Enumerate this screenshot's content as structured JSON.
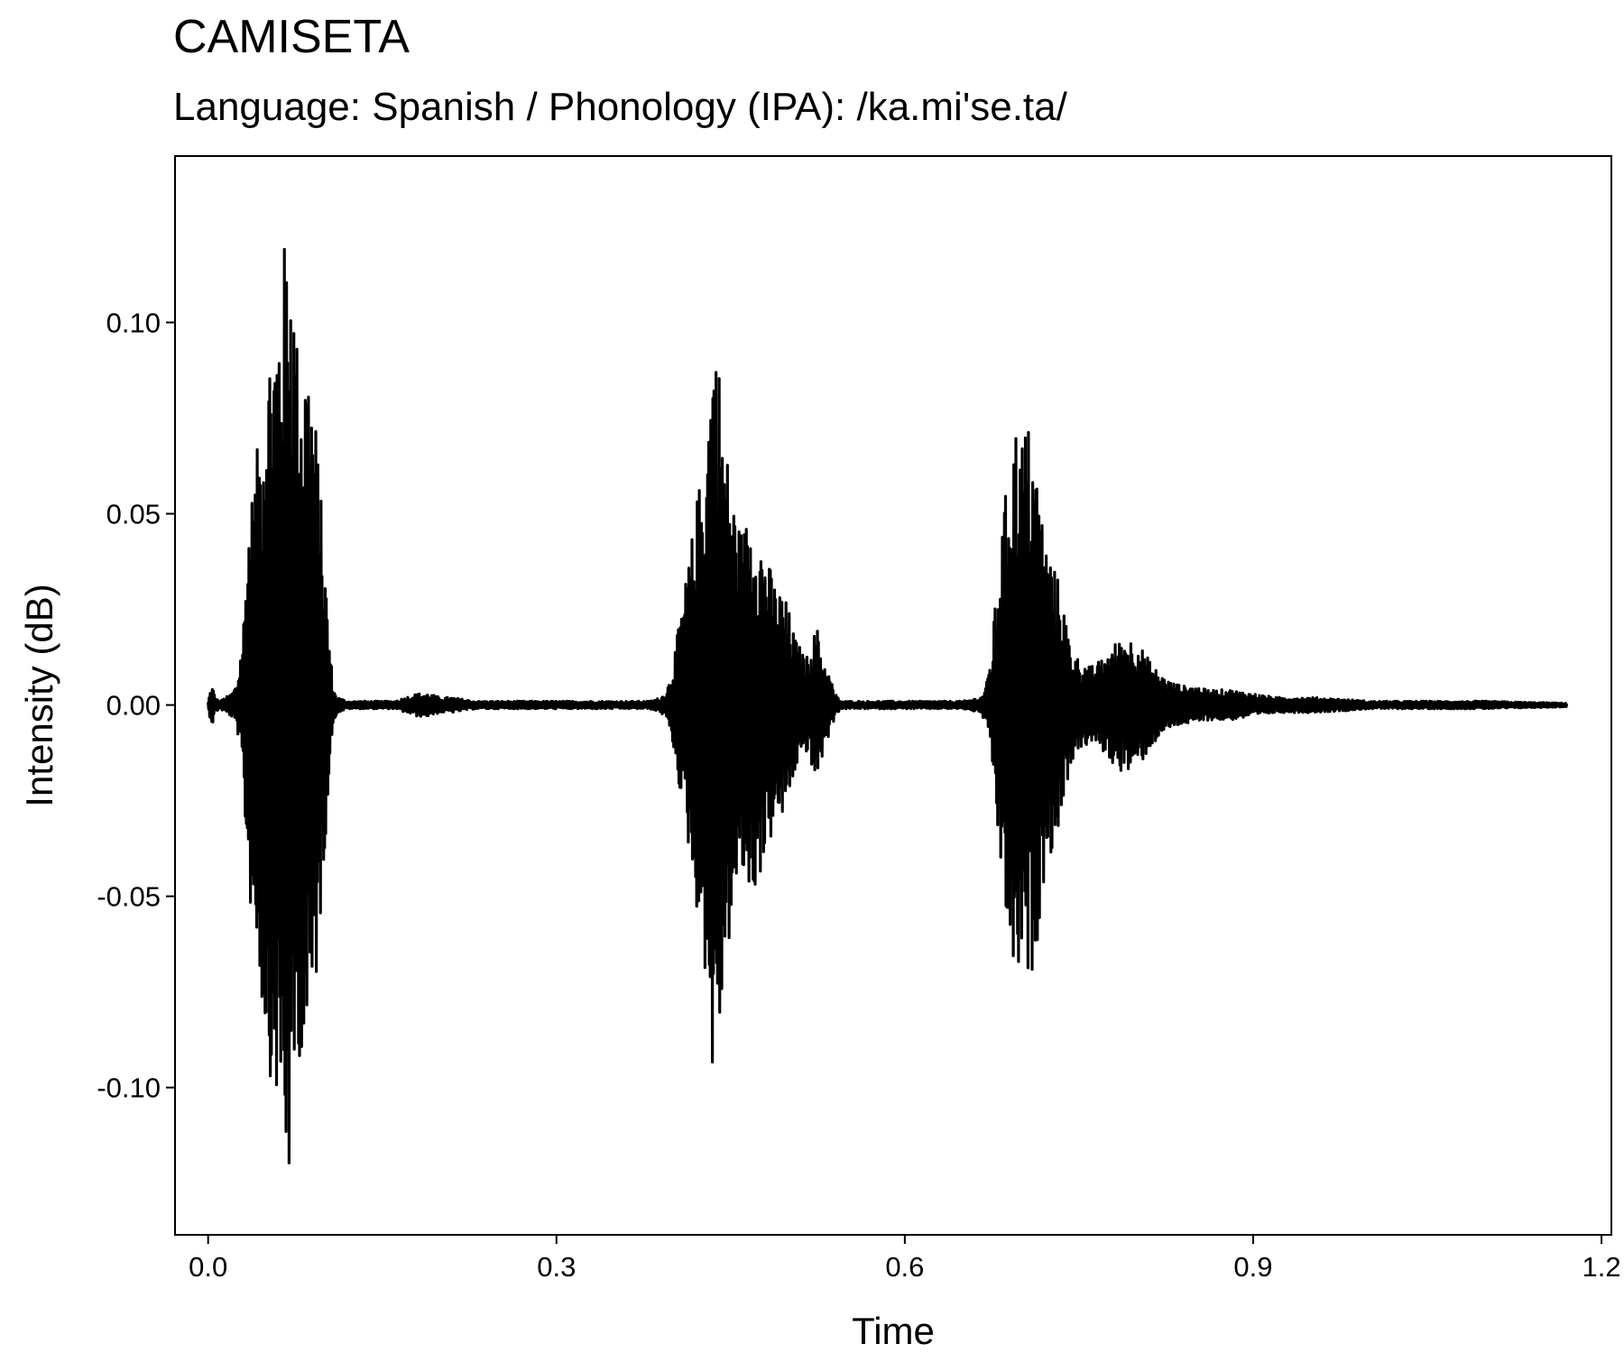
{
  "chart_data": {
    "type": "line",
    "title": "CAMISETA",
    "subtitle": "Language: Spanish / Phonology (IPA): /ka.mi'se.ta/",
    "xlabel": "Time",
    "ylabel": "Intensity (dB)",
    "xlim": [
      -0.0285,
      1.2085
    ],
    "ylim": [
      -0.1385,
      0.1435
    ],
    "x_ticks": [
      {
        "value": 0.0,
        "label": "0.0"
      },
      {
        "value": 0.3,
        "label": "0.3"
      },
      {
        "value": 0.6,
        "label": "0.6"
      },
      {
        "value": 0.9,
        "label": "0.9"
      },
      {
        "value": 1.2,
        "label": "1.2"
      }
    ],
    "y_ticks": [
      {
        "value": 0.1,
        "label": "0.10"
      },
      {
        "value": 0.05,
        "label": "0.05"
      },
      {
        "value": 0.0,
        "label": "0.00"
      },
      {
        "value": -0.05,
        "label": "-0.05"
      },
      {
        "value": -0.1,
        "label": "-0.10"
      }
    ],
    "grid": false,
    "line_color": "#000000",
    "series": [
      {
        "envelope": {
          "time": [
            0.0,
            0.002,
            0.004,
            0.006,
            0.01,
            0.015,
            0.02,
            0.025,
            0.03,
            0.035,
            0.04,
            0.045,
            0.05,
            0.055,
            0.06,
            0.065,
            0.07,
            0.072,
            0.075,
            0.08,
            0.085,
            0.09,
            0.095,
            0.1,
            0.105,
            0.108,
            0.112,
            0.12,
            0.14,
            0.16,
            0.18,
            0.19,
            0.2,
            0.21,
            0.23,
            0.25,
            0.28,
            0.3,
            0.33,
            0.36,
            0.38,
            0.39,
            0.395,
            0.4,
            0.405,
            0.41,
            0.415,
            0.42,
            0.425,
            0.43,
            0.435,
            0.44,
            0.445,
            0.45,
            0.455,
            0.46,
            0.465,
            0.47,
            0.475,
            0.48,
            0.485,
            0.49,
            0.495,
            0.5,
            0.505,
            0.51,
            0.515,
            0.52,
            0.525,
            0.53,
            0.535,
            0.54,
            0.545,
            0.55,
            0.6,
            0.65,
            0.665,
            0.67,
            0.675,
            0.68,
            0.685,
            0.69,
            0.695,
            0.7,
            0.705,
            0.71,
            0.715,
            0.72,
            0.725,
            0.73,
            0.735,
            0.74,
            0.745,
            0.75,
            0.76,
            0.77,
            0.78,
            0.79,
            0.8,
            0.81,
            0.82,
            0.83,
            0.84,
            0.85,
            0.86,
            0.87,
            0.88,
            0.9,
            0.92,
            0.95,
            0.98,
            1.0,
            1.05,
            1.1,
            1.17
          ],
          "amplitude": [
            0.001,
            0.004,
            0.005,
            0.002,
            0.001,
            0.002,
            0.003,
            0.006,
            0.02,
            0.05,
            0.06,
            0.075,
            0.09,
            0.1,
            0.105,
            0.12,
            0.128,
            0.128,
            0.1,
            0.09,
            0.095,
            0.085,
            0.065,
            0.04,
            0.015,
            0.004,
            0.002,
            0.001,
            0.001,
            0.001,
            0.003,
            0.003,
            0.002,
            0.002,
            0.001,
            0.001,
            0.001,
            0.001,
            0.001,
            0.001,
            0.001,
            0.002,
            0.004,
            0.01,
            0.02,
            0.03,
            0.04,
            0.052,
            0.062,
            0.075,
            0.102,
            0.09,
            0.07,
            0.06,
            0.05,
            0.045,
            0.05,
            0.05,
            0.045,
            0.04,
            0.035,
            0.03,
            0.03,
            0.025,
            0.018,
            0.015,
            0.012,
            0.018,
            0.02,
            0.012,
            0.008,
            0.003,
            0.001,
            0.001,
            0.001,
            0.001,
            0.002,
            0.005,
            0.015,
            0.035,
            0.05,
            0.065,
            0.075,
            0.07,
            0.075,
            0.07,
            0.06,
            0.045,
            0.04,
            0.035,
            0.03,
            0.02,
            0.014,
            0.012,
            0.01,
            0.012,
            0.016,
            0.018,
            0.017,
            0.012,
            0.008,
            0.006,
            0.005,
            0.005,
            0.004,
            0.004,
            0.004,
            0.003,
            0.002,
            0.002,
            0.0015,
            0.001,
            0.001,
            0.001,
            0.0005
          ]
        }
      }
    ]
  }
}
